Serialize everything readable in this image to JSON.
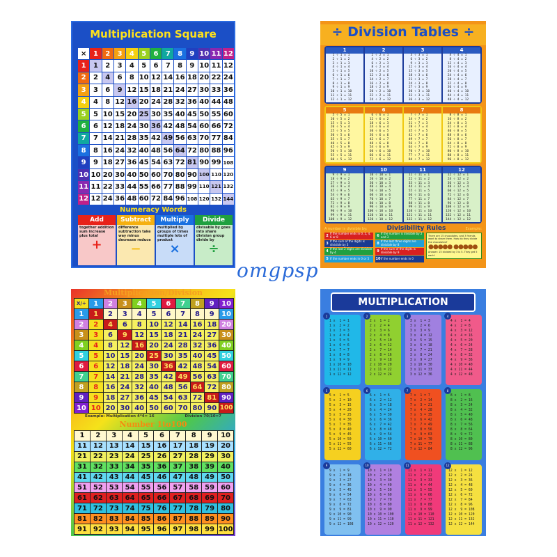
{
  "watermark": "omgpsp",
  "poster1": {
    "title": "Multiplication Square",
    "corner": "×",
    "size": 12,
    "header_colors": [
      "#e8221a",
      "#f06a10",
      "#f5a010",
      "#f5d010",
      "#9ad020",
      "#20b040",
      "#10a8a0",
      "#1a70e0",
      "#2040c0",
      "#5030b0",
      "#8a28b0",
      "#c0208a"
    ],
    "numeracy_title": "Numeracy Words",
    "words": [
      {
        "label": "Add",
        "words": "together addition sum increase plus total",
        "symbol": "+",
        "color": "#e8221a",
        "bg": "#f8c8c8",
        "sym_color": "#e8221a"
      },
      {
        "label": "Subtract",
        "words": "difference subtraction take way minus decrease reduce",
        "symbol": "−",
        "color": "#f5b010",
        "bg": "#fbe8b0",
        "sym_color": "#f5c020"
      },
      {
        "label": "Multiply",
        "words": "multiplied by groups of times multiple lots of product",
        "symbol": "×",
        "color": "#1a70e0",
        "bg": "#c8dcf8",
        "sym_color": "#1a70e0"
      },
      {
        "label": "Divide",
        "words": "divisable by goes into share division group divide by",
        "symbol": "÷",
        "color": "#20a040",
        "bg": "#c8ecc8",
        "sym_color": "#20a040"
      }
    ]
  },
  "poster2": {
    "title": "÷ Division Tables ÷",
    "tables": [
      1,
      2,
      3,
      4,
      5,
      6,
      7,
      8,
      9,
      10,
      11,
      12
    ],
    "rules_title": "Divisibility Rules",
    "rules_left": "A number is divisible by:",
    "rules_right": "Example:",
    "rules": [
      {
        "n": "2",
        "text": "If the number ends in 0, 2, 4, 6 or 8",
        "color": "#d82020"
      },
      {
        "n": "3",
        "text": "If the sum of the digits is divisible by 3",
        "color": "#1a3a90"
      },
      {
        "n": "4",
        "text": "If the last 2 digits are divisible by 4",
        "color": "#20a040"
      },
      {
        "n": "5",
        "text": "If the number ends in 0 or 5",
        "color": "#20a0d8"
      },
      {
        "n": "6",
        "text": "If the number is divisible by 2 and 3",
        "color": "#20a040"
      },
      {
        "n": "8",
        "text": "If the last three digits are divisible by 8",
        "color": "#20a0d8"
      },
      {
        "n": "9",
        "text": "If the sum of the digits is divisible by 9",
        "color": "#d82020"
      },
      {
        "n": "10",
        "text": "If the number ends in 0",
        "color": "#1a3a90"
      }
    ],
    "example_text": "There are 15 chocolates, and 3 friends want to share them. How do they divide the chocolates?",
    "example_answer": "Answer: 15 divided by 3 is 5. They get 5 each!"
  },
  "poster3": {
    "title": "Multiplication/Division",
    "corner": "X/÷",
    "size": 10,
    "example_mult": "Example: Multiplication 4*4= 16",
    "example_div": "Division 70/10=7",
    "title2": "Number 1to100",
    "colors": [
      "#2a9ae8",
      "#d080e0",
      "#c8901a",
      "#80d020",
      "#30d0e0",
      "#e01a40",
      "#40d090",
      "#c0a020",
      "#6020c0",
      "#8020d0"
    ],
    "row_colors": [
      "#fff",
      "#a8e0ff",
      "#f0f060",
      "#60e060",
      "#60d8f0",
      "#f0a0f0",
      "#e02020",
      "#30c0e0",
      "#ff9020",
      "#ffe040"
    ]
  },
  "poster4": {
    "title": "MULTIPLICATION",
    "tables": [
      1,
      2,
      3,
      4,
      5,
      6,
      7,
      8,
      9,
      10,
      11,
      12
    ],
    "card_colors": [
      "#20b8e8",
      "#90d030",
      "#a080e0",
      "#f05a8a",
      "#f5d020",
      "#30b0e8",
      "#f05020",
      "#50c050",
      "#80c0f0",
      "#b080e0",
      "#f03a7a",
      "#f5e040"
    ]
  }
}
